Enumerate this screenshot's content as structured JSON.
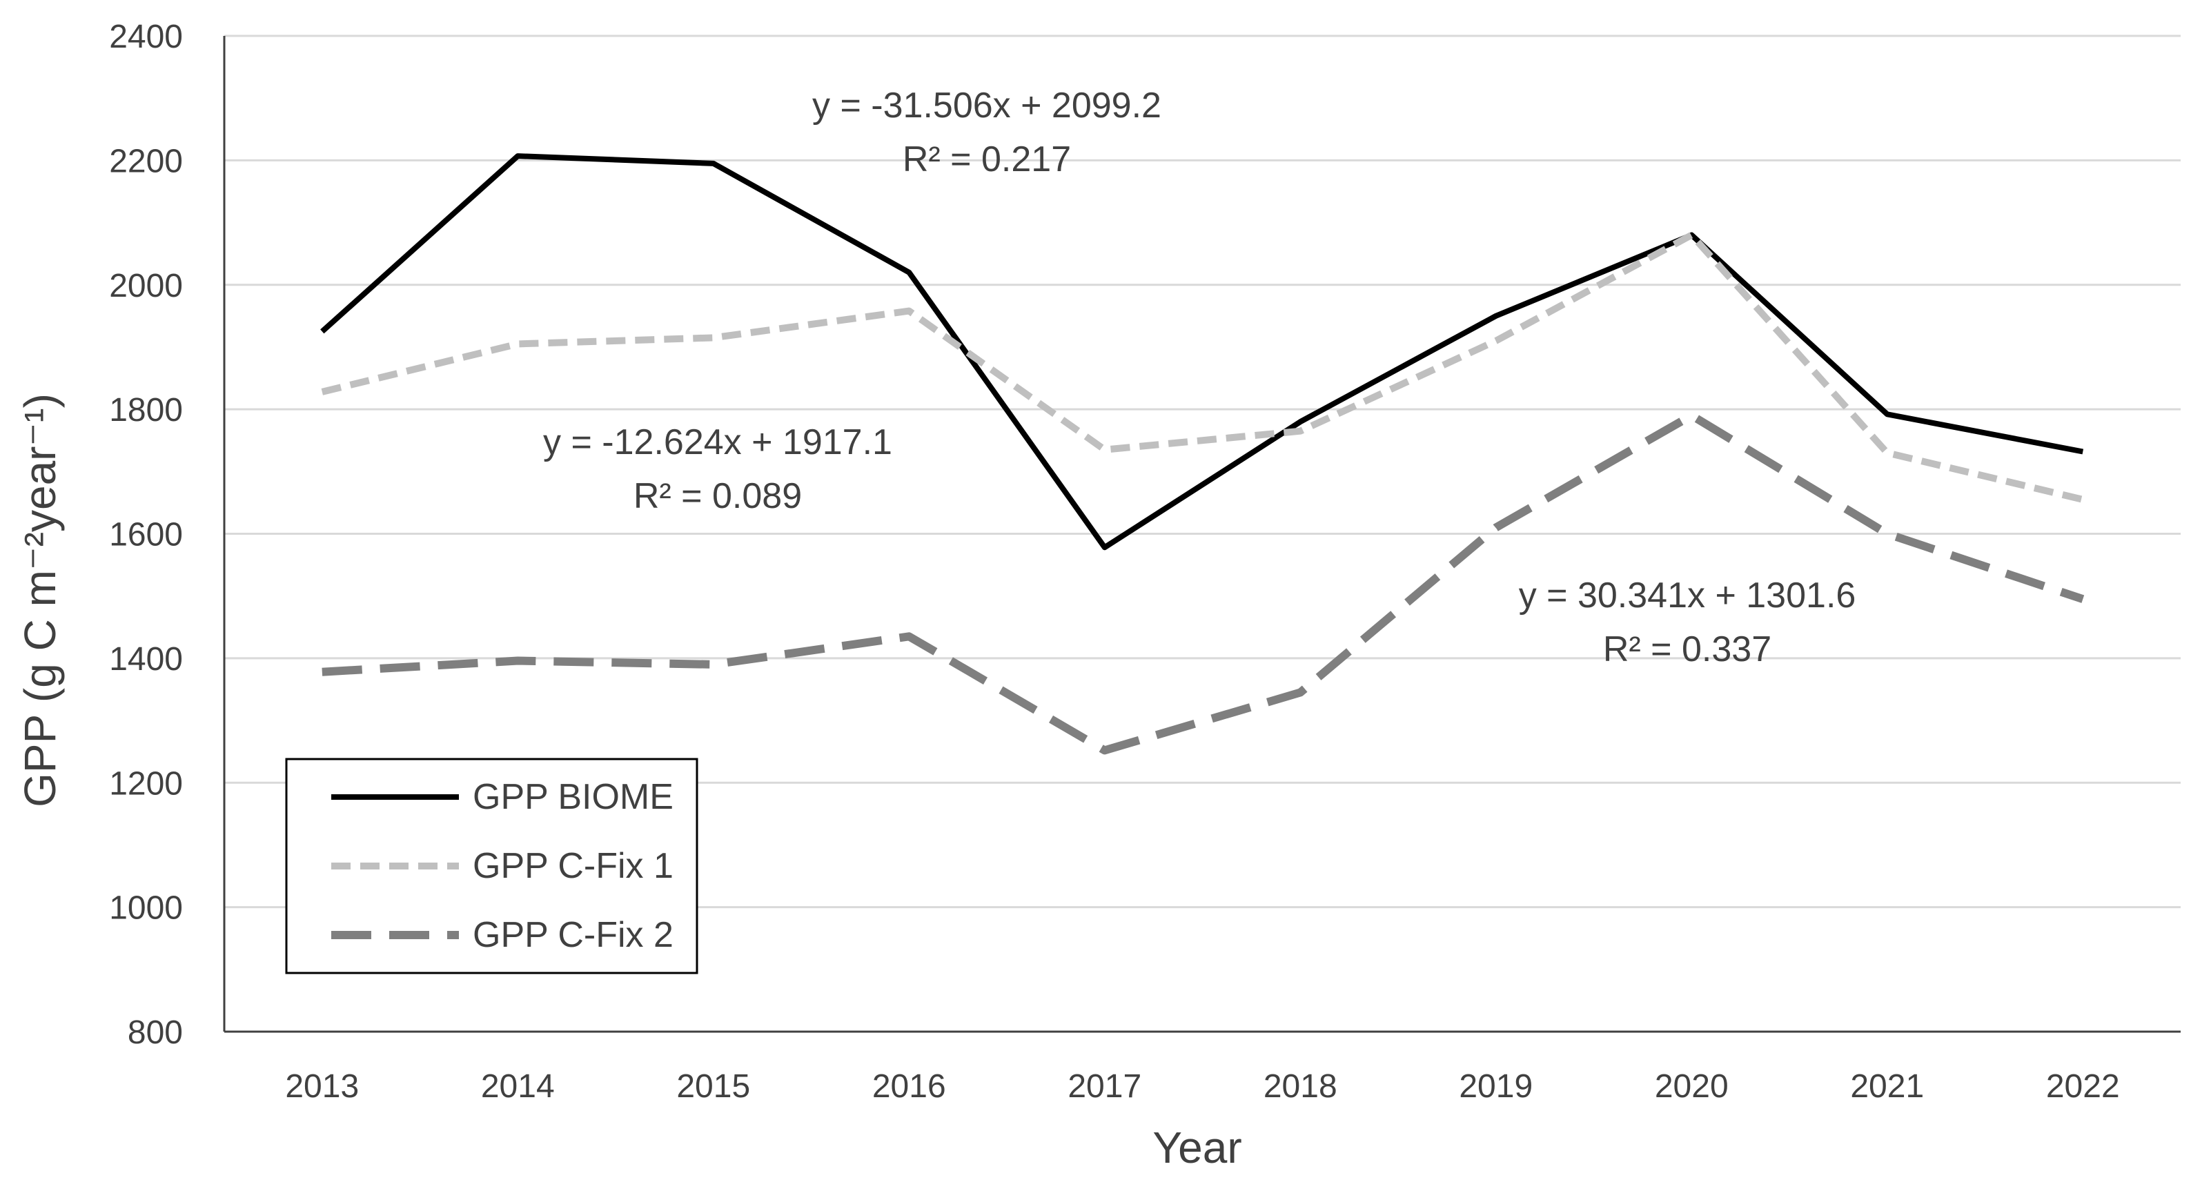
{
  "chart_data": {
    "type": "line",
    "xlabel": "Year",
    "ylabel": "GPP (g C m⁻²year⁻¹)",
    "ylim": [
      800,
      2400
    ],
    "yticks": [
      800,
      1000,
      1200,
      1400,
      1600,
      1800,
      2000,
      2200,
      2400
    ],
    "categories": [
      "2013",
      "2014",
      "2015",
      "2016",
      "2017",
      "2018",
      "2019",
      "2020",
      "2021",
      "2022"
    ],
    "grid": "horizontal",
    "legend_position": "bottom-left",
    "series": [
      {
        "name": "GPP BIOME",
        "values": [
          1925,
          2207,
          2195,
          2020,
          1578,
          1780,
          1950,
          2080,
          1792,
          1732
        ],
        "color": "#000000",
        "style": "solid"
      },
      {
        "name": "GPP C-Fix 1",
        "values": [
          1828,
          1905,
          1915,
          1958,
          1735,
          1765,
          1910,
          2080,
          1730,
          1655
        ],
        "color": "#bfbfbf",
        "style": "short-dash"
      },
      {
        "name": "GPP C-Fix 2",
        "values": [
          1378,
          1396,
          1390,
          1435,
          1252,
          1345,
          1610,
          1790,
          1600,
          1495
        ],
        "color": "#7f7f7f",
        "style": "long-dash"
      }
    ],
    "annotations": [
      {
        "line1": "y = -31.506x + 2099.2",
        "line2": "R² = 0.217"
      },
      {
        "line1": "y = -12.624x + 1917.1",
        "line2": "R² = 0.089"
      },
      {
        "line1": "y = 30.341x + 1301.6",
        "line2": "R² = 0.337"
      }
    ]
  }
}
